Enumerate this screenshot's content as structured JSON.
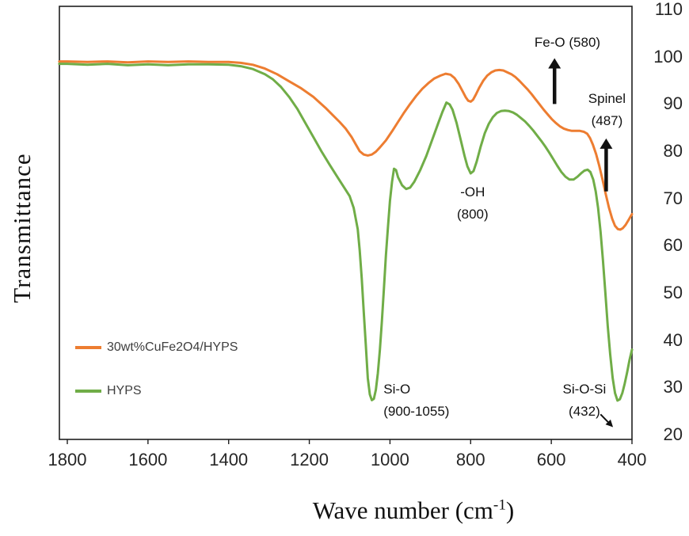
{
  "chart_data": {
    "type": "line",
    "title": "",
    "xlabel": "Wave number (cm⁻¹)",
    "xlabel_parts": {
      "main": "Wave number (cm",
      "sup": "-1",
      "close": ")"
    },
    "ylabel": "Transmittance",
    "grid": false,
    "legend_position": "inside-left-bottom",
    "x_axis": {
      "min": 400,
      "max": 1800,
      "reversed": true,
      "ticks": [
        1800,
        1600,
        1400,
        1200,
        1000,
        800,
        600,
        400
      ]
    },
    "y_axis": {
      "min": 20,
      "max": 110,
      "side": "right",
      "ticks": [
        110,
        100,
        90,
        80,
        70,
        60,
        50,
        40,
        30,
        20
      ]
    },
    "series": [
      {
        "name": "30wt%CuFe2O4/HYPS",
        "color": "#ED7D31",
        "x": [
          1820,
          1800,
          1750,
          1700,
          1650,
          1600,
          1550,
          1500,
          1450,
          1400,
          1370,
          1340,
          1310,
          1280,
          1250,
          1220,
          1190,
          1160,
          1140,
          1125,
          1110,
          1095,
          1085,
          1075,
          1065,
          1055,
          1045,
          1035,
          1025,
          1010,
          995,
          980,
          965,
          950,
          935,
          920,
          905,
          890,
          875,
          862,
          850,
          840,
          830,
          820,
          812,
          806,
          800,
          794,
          787,
          779,
          769,
          759,
          749,
          739,
          729,
          719,
          709,
          699,
          689,
          679,
          669,
          659,
          649,
          639,
          629,
          619,
          609,
          599,
          589,
          579,
          569,
          559,
          549,
          539,
          529,
          519,
          511,
          504,
          497,
          489,
          481,
          473,
          465,
          457,
          449,
          442,
          435,
          429,
          423,
          416,
          408,
          400
        ],
        "y": [
          99,
          99,
          98.9,
          99,
          98.8,
          99,
          98.9,
          99,
          98.9,
          98.9,
          98.7,
          98.3,
          97.5,
          96.3,
          94.8,
          93.3,
          91.5,
          89.2,
          87.5,
          86.2,
          84.8,
          83,
          81.5,
          80,
          79.3,
          79.1,
          79.3,
          79.9,
          80.8,
          82.3,
          84.2,
          86.2,
          88.2,
          90,
          91.7,
          93.2,
          94.4,
          95.4,
          96,
          96.4,
          96.2,
          95.5,
          94.3,
          92.7,
          91.4,
          90.7,
          90.5,
          90.9,
          92,
          93.4,
          94.9,
          96,
          96.7,
          97.1,
          97.2,
          97.1,
          96.7,
          96.3,
          95.7,
          94.9,
          94,
          93.1,
          92.1,
          91,
          89.9,
          88.8,
          87.8,
          86.8,
          86,
          85.3,
          84.8,
          84.5,
          84.3,
          84.3,
          84.3,
          84.1,
          83.7,
          82.8,
          81.4,
          79.4,
          76.9,
          74,
          70.9,
          68,
          65.7,
          64.2,
          63.5,
          63.4,
          63.7,
          64.4,
          65.5,
          66.7
        ]
      },
      {
        "name": "HYPS",
        "color": "#70AD47",
        "x": [
          1820,
          1800,
          1750,
          1700,
          1650,
          1600,
          1550,
          1500,
          1450,
          1400,
          1370,
          1340,
          1310,
          1290,
          1270,
          1250,
          1230,
          1210,
          1190,
          1170,
          1150,
          1130,
          1115,
          1100,
          1090,
          1080,
          1075,
          1070,
          1065,
          1060,
          1055,
          1050,
          1045,
          1040,
          1035,
          1030,
          1025,
          1020,
          1015,
          1010,
          1005,
          1000,
          995,
          990,
          985,
          980,
          970,
          960,
          950,
          940,
          925,
          910,
          895,
          880,
          870,
          860,
          852,
          845,
          835,
          825,
          815,
          808,
          800,
          793,
          785,
          775,
          765,
          755,
          745,
          735,
          725,
          715,
          705,
          695,
          685,
          675,
          665,
          655,
          645,
          635,
          625,
          615,
          605,
          595,
          585,
          575,
          565,
          555,
          545,
          535,
          525,
          518,
          510,
          503,
          496,
          490,
          484,
          478,
          472,
          466,
          460,
          454,
          448,
          442,
          436,
          430,
          424,
          418,
          412,
          406,
          400
        ],
        "y": [
          98.5,
          98.5,
          98.3,
          98.5,
          98.2,
          98.4,
          98.2,
          98.4,
          98.4,
          98.3,
          98,
          97.4,
          96.3,
          95.2,
          93.6,
          91.5,
          89,
          86,
          83,
          80,
          77.2,
          74.5,
          72.5,
          70.5,
          68,
          63.5,
          59,
          53,
          46,
          39,
          32,
          28.5,
          27.3,
          27.6,
          29.5,
          33,
          38,
          44,
          51,
          58,
          64,
          69.5,
          73.5,
          76.3,
          76,
          74.5,
          72.8,
          72,
          72.3,
          73.5,
          76,
          79,
          82.5,
          86,
          88.3,
          90.3,
          89.9,
          88.8,
          86,
          82.5,
          79,
          76.8,
          75.3,
          75.8,
          77.8,
          81,
          83.8,
          85.8,
          87.2,
          88.1,
          88.5,
          88.6,
          88.5,
          88.2,
          87.7,
          87,
          86.3,
          85.4,
          84.4,
          83.3,
          82.2,
          81,
          79.7,
          78.3,
          76.9,
          75.6,
          74.6,
          74,
          74,
          74.6,
          75.4,
          75.9,
          76.1,
          75.6,
          74,
          71.5,
          68,
          63,
          57,
          50,
          43,
          37,
          32,
          28.8,
          27.2,
          27.5,
          28.8,
          30.8,
          33.2,
          35.8,
          38
        ]
      }
    ],
    "annotations": [
      {
        "id": "fe-o",
        "lines": [
          "Fe-O (580)"
        ],
        "x": 560,
        "y": 103,
        "arrow": {
          "style": "block-up",
          "x": 592,
          "y_from": 90,
          "y_to": 99.7
        }
      },
      {
        "id": "spinel",
        "lines": [
          "Spinel",
          "(487)"
        ],
        "x": 462,
        "y": 88.7,
        "arrow": {
          "style": "block-up",
          "x": 464,
          "y_from": 71.5,
          "y_to": 82.7
        }
      },
      {
        "id": "oh",
        "lines": [
          "-OH",
          "(800)"
        ],
        "x": 795,
        "y": 68.9
      },
      {
        "id": "si-o",
        "lines": [
          "Si-O",
          "(900-1055)"
        ],
        "x": 1016,
        "y": 27.2,
        "align": "left"
      },
      {
        "id": "si-o-si",
        "lines": [
          "Si-O-Si",
          "(432)"
        ],
        "x": 518,
        "y": 27.2,
        "arrow": {
          "style": "thin",
          "x_from": 478,
          "y_from": 24.3,
          "x_to": 447,
          "y_to": 21.6
        }
      }
    ]
  },
  "legend": {
    "items": [
      {
        "label": "30wt%CuFe2O4/HYPS",
        "color": "#ED7D31"
      },
      {
        "label": "HYPS",
        "color": "#70AD47"
      }
    ]
  },
  "colors": {
    "axis_line": "#1f1f1f",
    "annotation": "#111111",
    "tick_text": "#262626"
  }
}
